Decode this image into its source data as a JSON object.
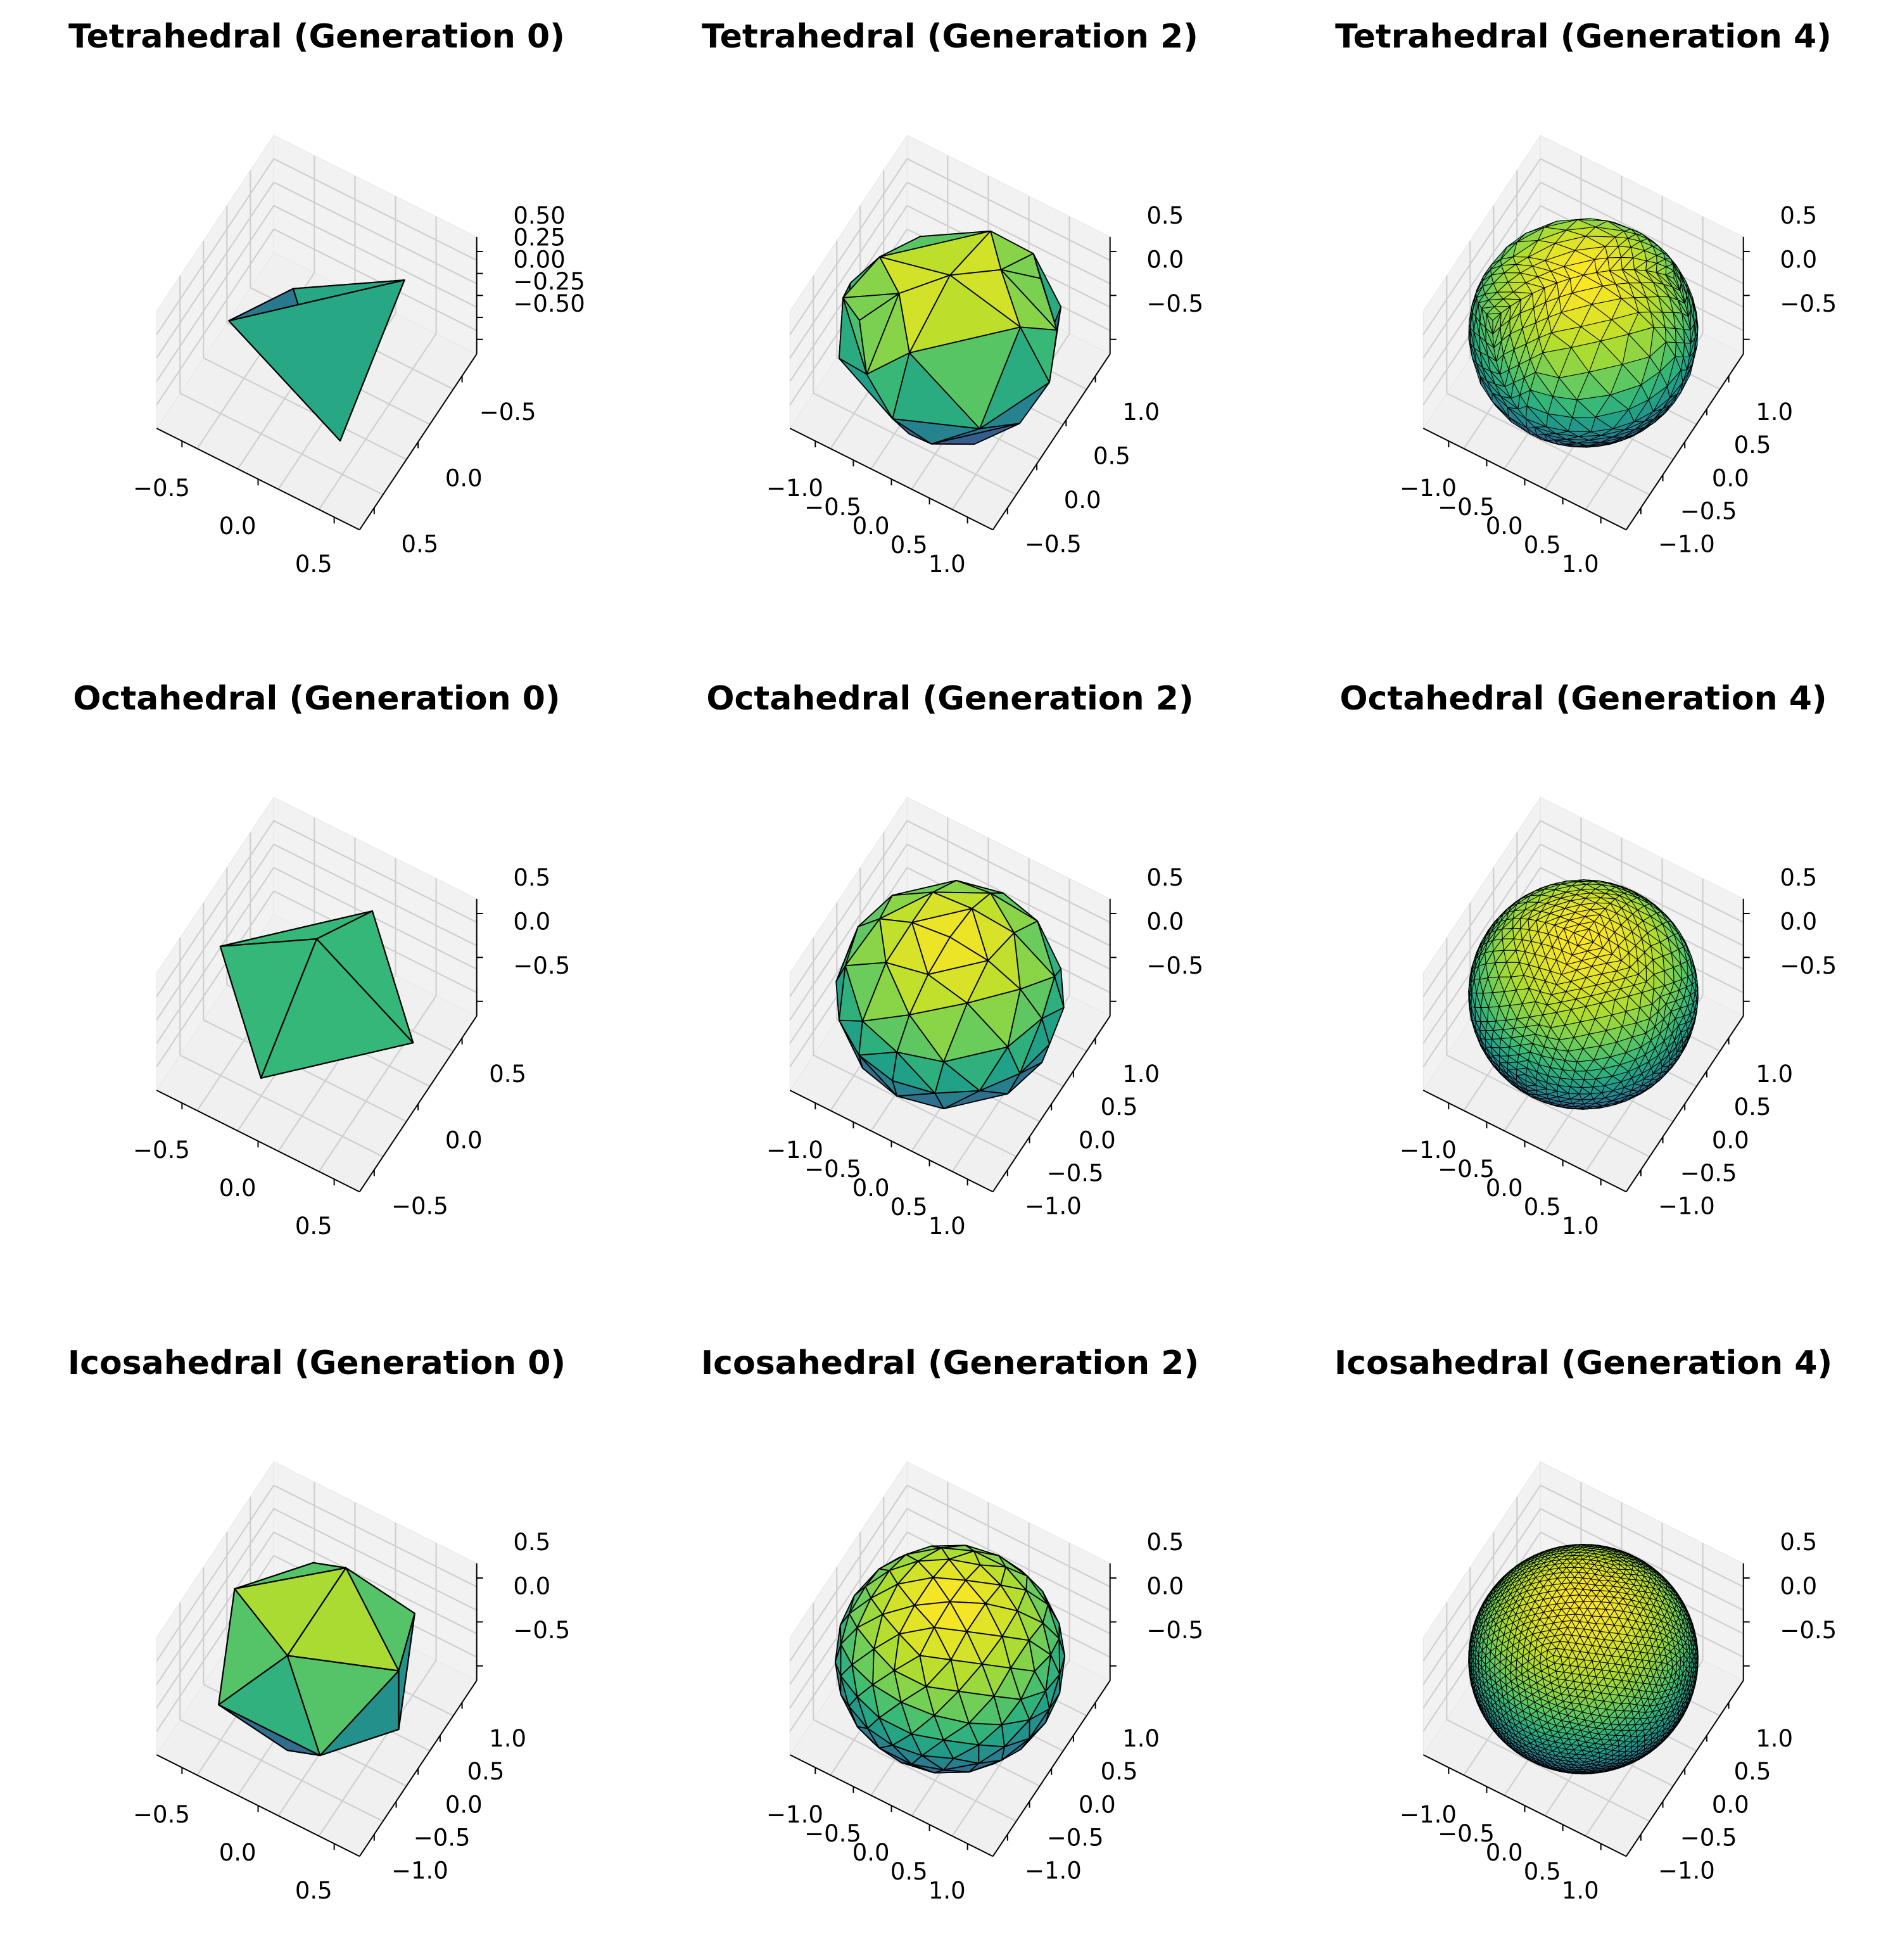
{
  "chart_data": [
    {
      "type": "3d-mesh",
      "title": "Tetrahedral (Generation 0)",
      "solid": "tetrahedron",
      "generation": 0,
      "colormap": "viridis",
      "grid": true,
      "x_ticks": [
        "−0.5",
        "0.0",
        "0.5"
      ],
      "y_ticks": [
        "−0.5",
        "0.0",
        "0.5"
      ],
      "z_ticks": [
        "0.50",
        "0.25",
        "0.00",
        "−0.25",
        "−0.50"
      ],
      "xlim": [
        -0.9,
        0.9
      ],
      "ylim": [
        -0.9,
        0.9
      ],
      "zlim": [
        -0.6,
        0.6
      ]
    },
    {
      "type": "3d-mesh",
      "title": "Tetrahedral (Generation 2)",
      "solid": "tetrahedron",
      "generation": 2,
      "colormap": "viridis",
      "grid": true,
      "x_ticks": [
        "−1.0",
        "−0.5",
        "0.0",
        "0.5",
        "1.0"
      ],
      "y_ticks": [
        "1.0",
        "0.5",
        "0.0",
        "−0.5"
      ],
      "z_ticks": [
        "0.5",
        "0.0",
        "−0.5"
      ],
      "xlim": [
        -1,
        1
      ],
      "ylim": [
        -1,
        1
      ],
      "zlim": [
        -1,
        1
      ]
    },
    {
      "type": "3d-mesh",
      "title": "Tetrahedral (Generation 4)",
      "solid": "tetrahedron",
      "generation": 4,
      "colormap": "viridis",
      "grid": true,
      "x_ticks": [
        "−1.0",
        "−0.5",
        "0.0",
        "0.5",
        "1.0"
      ],
      "y_ticks": [
        "1.0",
        "0.5",
        "0.0",
        "−0.5",
        "−1.0"
      ],
      "z_ticks": [
        "0.5",
        "0.0",
        "−0.5"
      ],
      "xlim": [
        -1,
        1
      ],
      "ylim": [
        -1,
        1
      ],
      "zlim": [
        -1,
        1
      ]
    },
    {
      "type": "3d-mesh",
      "title": "Octahedral (Generation 0)",
      "solid": "octahedron",
      "generation": 0,
      "colormap": "viridis",
      "grid": true,
      "x_ticks": [
        "−0.5",
        "0.0",
        "0.5"
      ],
      "y_ticks": [
        "0.5",
        "0.0",
        "−0.5"
      ],
      "z_ticks": [
        "0.5",
        "0.0",
        "−0.5"
      ],
      "xlim": [
        -1,
        1
      ],
      "ylim": [
        -1,
        1
      ],
      "zlim": [
        -1,
        1
      ]
    },
    {
      "type": "3d-mesh",
      "title": "Octahedral (Generation 2)",
      "solid": "octahedron",
      "generation": 2,
      "colormap": "viridis",
      "grid": true,
      "x_ticks": [
        "−1.0",
        "−0.5",
        "0.0",
        "0.5",
        "1.0"
      ],
      "y_ticks": [
        "1.0",
        "0.5",
        "0.0",
        "−0.5",
        "−1.0"
      ],
      "z_ticks": [
        "0.5",
        "0.0",
        "−0.5"
      ],
      "xlim": [
        -1,
        1
      ],
      "ylim": [
        -1,
        1
      ],
      "zlim": [
        -1,
        1
      ]
    },
    {
      "type": "3d-mesh",
      "title": "Octahedral (Generation 4)",
      "solid": "octahedron",
      "generation": 4,
      "colormap": "viridis",
      "grid": true,
      "x_ticks": [
        "−1.0",
        "−0.5",
        "0.0",
        "0.5",
        "1.0"
      ],
      "y_ticks": [
        "1.0",
        "0.5",
        "0.0",
        "−0.5",
        "−1.0"
      ],
      "z_ticks": [
        "0.5",
        "0.0",
        "−0.5"
      ],
      "xlim": [
        -1,
        1
      ],
      "ylim": [
        -1,
        1
      ],
      "zlim": [
        -1,
        1
      ]
    },
    {
      "type": "3d-mesh",
      "title": "Icosahedral (Generation 0)",
      "solid": "icosahedron",
      "generation": 0,
      "colormap": "viridis",
      "grid": true,
      "x_ticks": [
        "−0.5",
        "0.0",
        "0.5"
      ],
      "y_ticks": [
        "1.0",
        "0.5",
        "0.0",
        "−0.5",
        "−1.0"
      ],
      "z_ticks": [
        "0.5",
        "0.0",
        "−0.5"
      ],
      "xlim": [
        -1,
        1
      ],
      "ylim": [
        -1,
        1
      ],
      "zlim": [
        -1,
        1
      ]
    },
    {
      "type": "3d-mesh",
      "title": "Icosahedral (Generation 2)",
      "solid": "icosahedron",
      "generation": 2,
      "colormap": "viridis",
      "grid": true,
      "x_ticks": [
        "−1.0",
        "−0.5",
        "0.0",
        "0.5",
        "1.0"
      ],
      "y_ticks": [
        "1.0",
        "0.5",
        "0.0",
        "−0.5",
        "−1.0"
      ],
      "z_ticks": [
        "0.5",
        "0.0",
        "−0.5"
      ],
      "xlim": [
        -1,
        1
      ],
      "ylim": [
        -1,
        1
      ],
      "zlim": [
        -1,
        1
      ]
    },
    {
      "type": "3d-mesh",
      "title": "Icosahedral (Generation 4)",
      "solid": "icosahedron",
      "generation": 4,
      "colormap": "viridis",
      "grid": true,
      "x_ticks": [
        "−1.0",
        "−0.5",
        "0.0",
        "0.5",
        "1.0"
      ],
      "y_ticks": [
        "1.0",
        "0.5",
        "0.0",
        "−0.5",
        "−1.0"
      ],
      "z_ticks": [
        "0.5",
        "0.0",
        "−0.5"
      ],
      "xlim": [
        -1,
        1
      ],
      "ylim": [
        -1,
        1
      ],
      "zlim": [
        -1,
        1
      ]
    }
  ]
}
